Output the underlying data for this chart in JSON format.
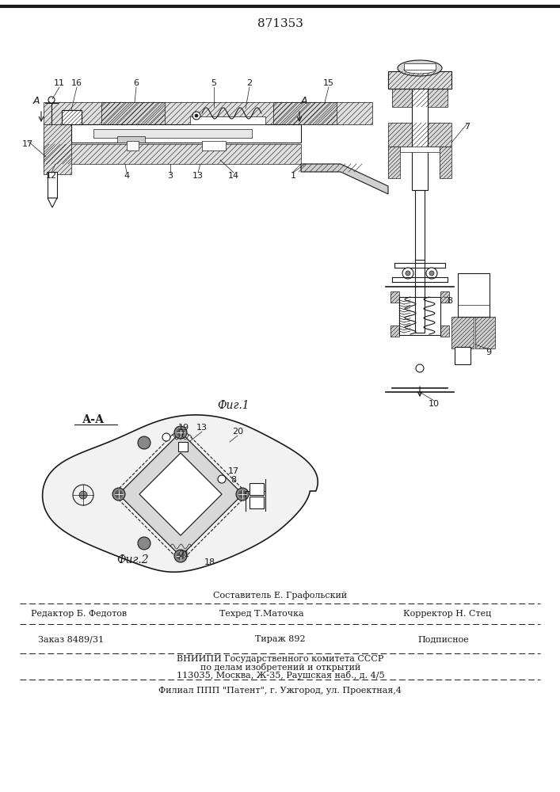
{
  "patent_number": "871353",
  "fig1_label": "Фиг.1",
  "fig2_label": "Фиг.2",
  "section_label": "А-А",
  "editor_line": "Редактор Б. Федотов",
  "composer_line": "Составитель Е. Графольский",
  "techred_line": "Техред Т.Маточка",
  "corrector_line": "Корректор Н. Стец",
  "order_line": "Заказ 8489/31",
  "tirazh_line": "Тираж 892",
  "podpisnoe_line": "Подписное",
  "vniip_line": "ВНИИПИ Государственного комитета СССР",
  "po_delam_line": "по делам изобретений и открытий",
  "address_line": "113035, Москва, Ж-35, Раушская наб., д. 4/5",
  "filial_line": "Филиал ППП \"Патент\", г. Ужгород, ул. Проектная,4",
  "bg_color": "#ffffff",
  "line_color": "#1a1a1a"
}
